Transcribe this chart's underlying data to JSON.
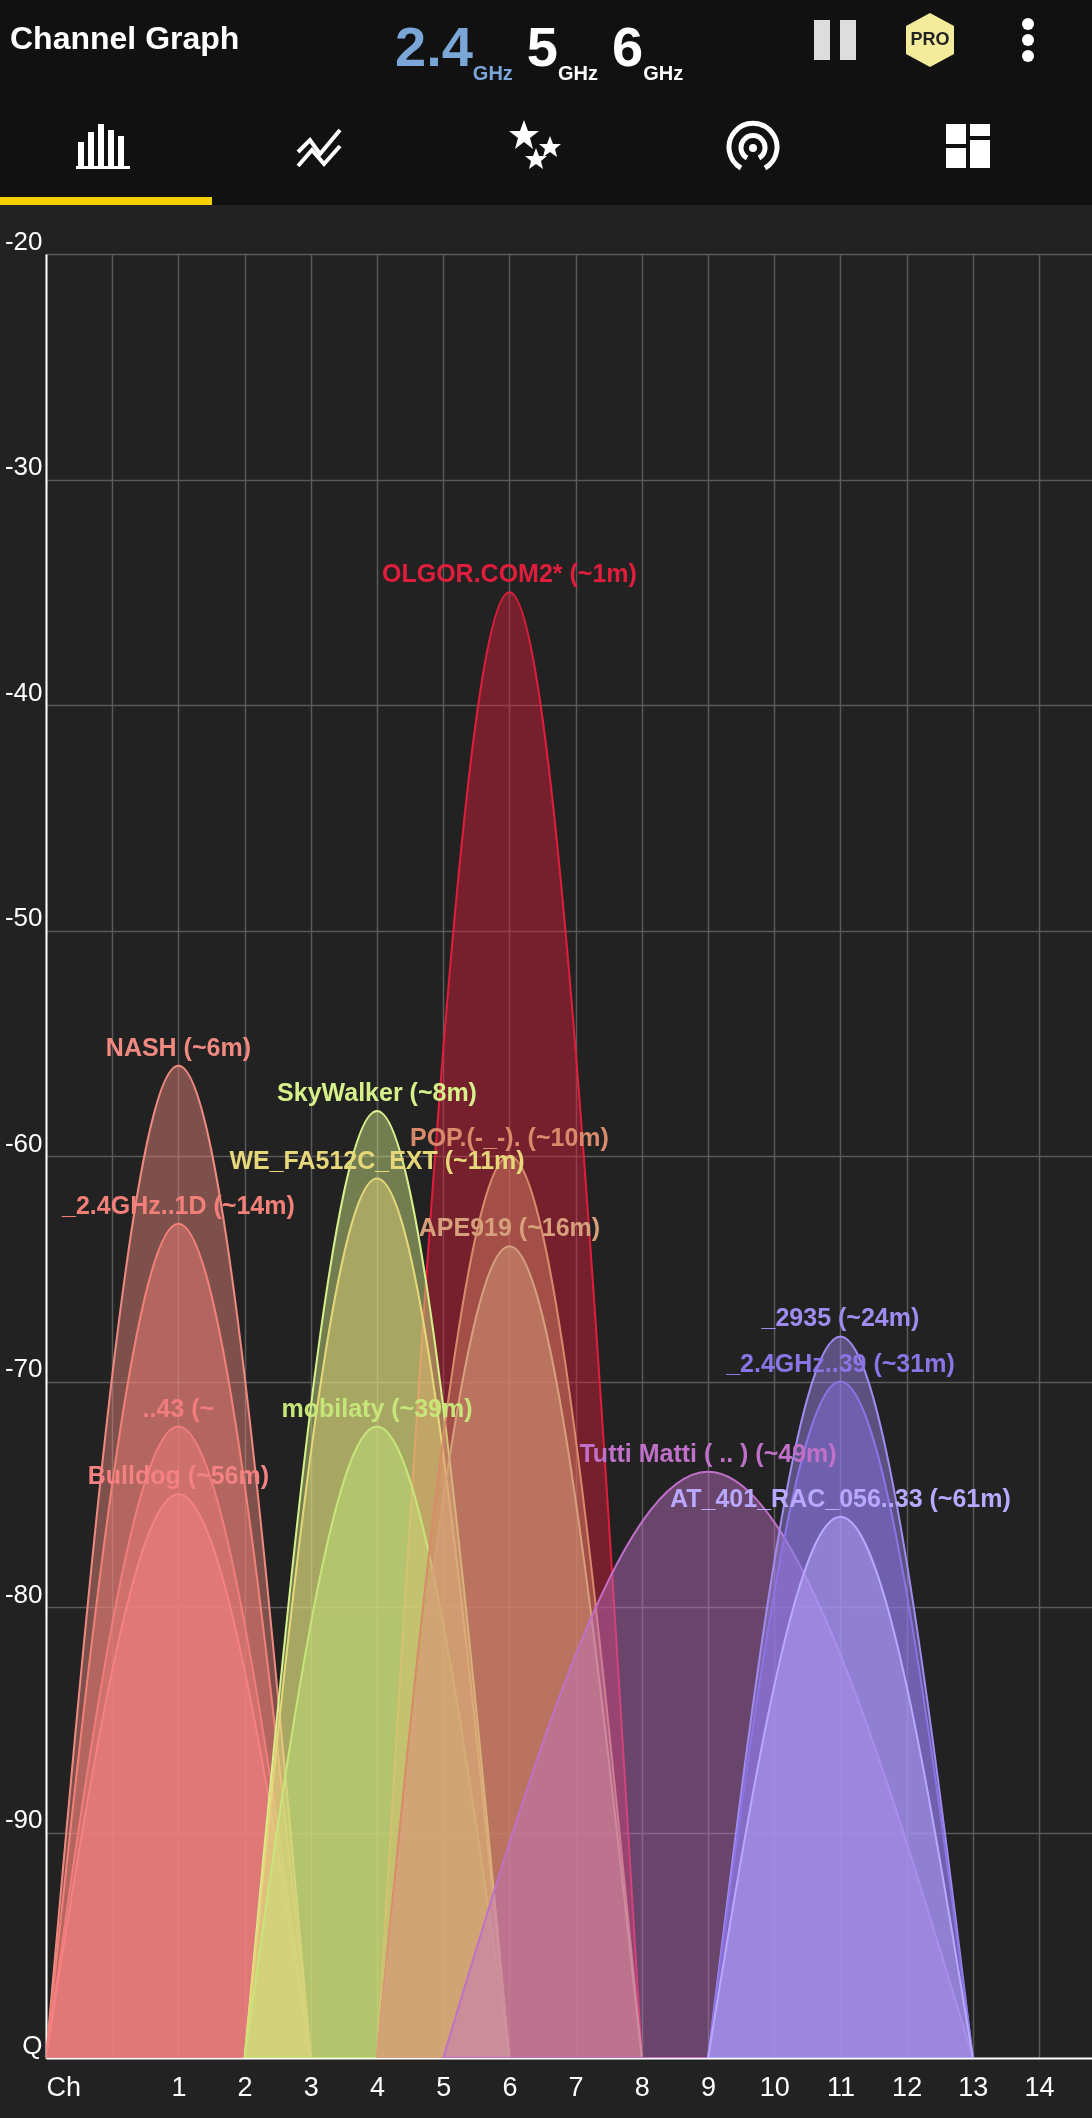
{
  "chart_data": {
    "type": "area",
    "title": "Channel Graph",
    "annotations": [
      "2.4$_{GHz}$",
      "5$_{GHz}$",
      "6$_{GHz}$",
      "PRO"
    ],
    "xlim": [
      -1,
      14.8
    ],
    "ylim": [
      -100,
      -20
    ],
    "xticks": [
      {
        "value": -1,
        "label": "Ch"
      },
      {
        "value": 0,
        "label": null
      },
      1,
      2,
      3,
      4,
      5,
      6,
      7,
      8,
      9,
      10,
      11,
      12,
      13,
      14
    ],
    "yticks": [
      {
        "value": -100,
        "label": "Q"
      },
      -90,
      -80,
      -70,
      -60,
      -50,
      -40,
      -30,
      -20
    ],
    "grid": true,
    "series": [
      {
        "name": "OLGOR.COM2* (~1m)",
        "color": "#e01e3c",
        "x": [
          4,
          6,
          8
        ],
        "values": [
          -100,
          -35,
          -100
        ]
      },
      {
        "name": "NASH (~6m)",
        "color": "#f08a80",
        "x": [
          -1,
          1,
          3
        ],
        "values": [
          -100,
          -56,
          -100
        ]
      },
      {
        "name": "_2.4GHz..1D (~14m)",
        "color": "#f28078",
        "x": [
          -1,
          1,
          3
        ],
        "values": [
          -100,
          -63,
          -100
        ]
      },
      {
        "name": "..43 (~",
        "color": "#f07c7c",
        "x": [
          -1,
          1,
          3
        ],
        "values": [
          -100,
          -72,
          -100
        ]
      },
      {
        "name": "Bulldog (~56m)",
        "color": "#f48282",
        "x": [
          -1,
          1,
          3
        ],
        "values": [
          -100,
          -75,
          -100
        ]
      },
      {
        "name": "SkyWalker (~8m)",
        "color": "#d6f08a",
        "x": [
          2,
          4,
          6
        ],
        "values": [
          -100,
          -58,
          -100
        ]
      },
      {
        "name": "WE_FA512C_EXT (~11m)",
        "color": "#e6d87a",
        "x": [
          2,
          4,
          6
        ],
        "values": [
          -100,
          -61,
          -100
        ]
      },
      {
        "name": "mobilaty (~39m)",
        "color": "#c6e67a",
        "x": [
          2,
          4,
          6
        ],
        "values": [
          -100,
          -72,
          -100
        ]
      },
      {
        "name": "POP.(-_-). (~10m)",
        "color": "#d98a6a",
        "x": [
          4,
          6,
          8
        ],
        "values": [
          -100,
          -60,
          -100
        ]
      },
      {
        "name": "APE919 (~16m)",
        "color": "#d6a07c",
        "x": [
          4,
          6,
          8
        ],
        "values": [
          -100,
          -64,
          -100
        ]
      },
      {
        "name": "Tutti Matti ( .. ) (~49m)",
        "color": "#c070c8",
        "x": [
          5,
          9,
          13
        ],
        "values": [
          -100,
          -74,
          -100
        ]
      },
      {
        "name": "_2935 (~24m)",
        "color": "#a08cf0",
        "x": [
          9,
          11,
          13
        ],
        "values": [
          -100,
          -68,
          -100
        ]
      },
      {
        "name": "_2.4GHz..39 (~31m)",
        "color": "#8a74e6",
        "x": [
          9,
          11,
          13
        ],
        "values": [
          -100,
          -70,
          -100
        ]
      },
      {
        "name": "AT_401_RAC_056..33 (~61m)",
        "color": "#b8a8ff",
        "x": [
          9,
          11,
          13
        ],
        "values": [
          -100,
          -76,
          -100
        ]
      }
    ]
  }
}
